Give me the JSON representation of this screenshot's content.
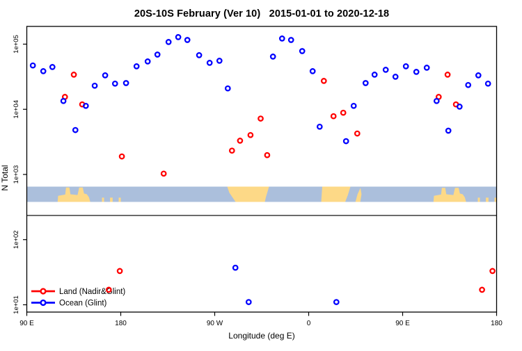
{
  "title": "20S-10S February (Ver 10)   2015-01-01 to 2020-12-18",
  "chart_data": {
    "type": "scatter",
    "title": "20S-10S February (Ver 10)   2015-01-01 to 2020-12-18",
    "xlabel": "Longitude (deg E)",
    "ylabel": "N Total",
    "x_axis": {
      "range": [
        90,
        540
      ],
      "tick_values": [
        90,
        180,
        270,
        360,
        450,
        540
      ],
      "tick_labels": [
        "90 E",
        "180",
        "90 W",
        "0",
        "90 E",
        "180"
      ]
    },
    "y_axis": {
      "scale": "log10",
      "range": [
        8,
        200000
      ],
      "tick_values": [
        10,
        100,
        1000,
        10000,
        100000
      ],
      "tick_labels": [
        "1e+01",
        "1e+02",
        "1e+03",
        "1e+04",
        "1e+05"
      ]
    },
    "legend": {
      "position": "bottom-left",
      "entries": [
        {
          "label": "Land (Nadir&Glint)",
          "color": "#ff0000"
        },
        {
          "label": "Ocean (Glint)",
          "color": "#0000ff"
        }
      ]
    },
    "series": [
      {
        "key": "land",
        "label": "Land (Nadir&Glint)",
        "color": "#ff0000",
        "marker": "open-circle",
        "points": [
          [
            126.5,
            15500
          ],
          [
            135.1,
            34000
          ],
          [
            143.1,
            11900
          ],
          [
            168.5,
            17
          ],
          [
            179.1,
            33
          ],
          [
            181.1,
            1890
          ],
          [
            221.1,
            1030
          ],
          [
            286.5,
            2320
          ],
          [
            294.3,
            3300
          ],
          [
            304.3,
            4030
          ],
          [
            314.0,
            7200
          ],
          [
            320.3,
            1980
          ],
          [
            374.5,
            27300
          ],
          [
            383.8,
            7830
          ],
          [
            393.1,
            8850
          ],
          [
            406.5,
            4250
          ],
          [
            484.5,
            15500
          ],
          [
            493.1,
            34000
          ],
          [
            501.1,
            11900
          ],
          [
            526.1,
            17
          ],
          [
            536.1,
            33
          ]
        ]
      },
      {
        "key": "ocean",
        "label": "Ocean (Glint)",
        "color": "#0000ff",
        "marker": "open-circle",
        "points": [
          [
            95.8,
            47000
          ],
          [
            105.8,
            38500
          ],
          [
            114.5,
            44600
          ],
          [
            125.1,
            13400
          ],
          [
            136.5,
            4800
          ],
          [
            146.5,
            11300
          ],
          [
            155.1,
            23000
          ],
          [
            165.1,
            33200
          ],
          [
            174.5,
            24800
          ],
          [
            185.1,
            25300
          ],
          [
            195.1,
            45700
          ],
          [
            205.8,
            54200
          ],
          [
            215.1,
            69200
          ],
          [
            225.8,
            108000
          ],
          [
            235.1,
            128000
          ],
          [
            243.8,
            116000
          ],
          [
            255.1,
            67600
          ],
          [
            265.1,
            51600
          ],
          [
            274.5,
            55600
          ],
          [
            282.5,
            20900
          ],
          [
            289.8,
            37
          ],
          [
            302.5,
            11
          ],
          [
            325.8,
            64400
          ],
          [
            334.5,
            122000
          ],
          [
            343.1,
            116000
          ],
          [
            353.8,
            78300
          ],
          [
            363.8,
            38500
          ],
          [
            370.5,
            5400
          ],
          [
            386.5,
            11
          ],
          [
            395.8,
            3240
          ],
          [
            403.1,
            11300
          ],
          [
            414.5,
            25300
          ],
          [
            423.1,
            34000
          ],
          [
            433.8,
            40400
          ],
          [
            443.1,
            31600
          ],
          [
            453.1,
            45700
          ],
          [
            463.1,
            37500
          ],
          [
            473.1,
            43500
          ],
          [
            482.5,
            13400
          ],
          [
            493.8,
            4700
          ],
          [
            504.5,
            11000
          ],
          [
            512.8,
            23600
          ],
          [
            522.5,
            33200
          ],
          [
            531.8,
            24800
          ]
        ]
      }
    ],
    "map_strip": {
      "description": "20S-10S latitude band world map",
      "ocean_color": "#abbfdc",
      "land_color": "#fdd987",
      "land_polygons": [
        {
          "name": "indonesia-australia",
          "pts": [
            [
              119.5,
              1
            ],
            [
              120,
              0.6
            ],
            [
              124,
              0.55
            ],
            [
              126.8,
              0.52
            ],
            [
              127.6,
              0.06
            ],
            [
              130.8,
              0.06
            ],
            [
              131.8,
              0.5
            ],
            [
              138.6,
              0.55
            ],
            [
              140.2,
              0.06
            ],
            [
              143.6,
              0.06
            ],
            [
              144.8,
              0.45
            ],
            [
              147.5,
              0.5
            ],
            [
              149.5,
              0.7
            ],
            [
              150.8,
              1
            ]
          ]
        },
        {
          "name": "south-america",
          "pts": [
            [
              282,
              0
            ],
            [
              322,
              0
            ],
            [
              319,
              0.7
            ],
            [
              318,
              1
            ],
            [
              290,
              1
            ],
            [
              284,
              0.4
            ]
          ]
        },
        {
          "name": "africa",
          "pts": [
            [
              373,
              0
            ],
            [
              400,
              0
            ],
            [
              397.5,
              0.55
            ],
            [
              395,
              1
            ],
            [
              372,
              1
            ]
          ]
        },
        {
          "name": "madagascar",
          "pts": [
            [
              409.6,
              0.08
            ],
            [
              410.6,
              0.5
            ],
            [
              409.4,
              1
            ],
            [
              404.8,
              1
            ],
            [
              406.8,
              0.5
            ]
          ]
        },
        {
          "name": "australia-wrap",
          "pts": [
            [
              479.5,
              1
            ],
            [
              480,
              0.6
            ],
            [
              484,
              0.55
            ],
            [
              486.8,
              0.52
            ],
            [
              487.6,
              0.08
            ],
            [
              490.8,
              0.08
            ],
            [
              491.8,
              0.5
            ],
            [
              498.6,
              0.55
            ],
            [
              500.2,
              0.08
            ],
            [
              503.6,
              0.08
            ],
            [
              504.8,
              0.45
            ],
            [
              507.5,
              0.5
            ],
            [
              509.5,
              0.7
            ],
            [
              510.8,
              1
            ]
          ]
        }
      ],
      "island_specks": [
        {
          "lon": 163,
          "w": 2
        },
        {
          "lon": 171,
          "w": 2.5
        },
        {
          "lon": 179,
          "w": 2
        },
        {
          "lon": 523,
          "w": 2
        },
        {
          "lon": 531,
          "w": 2.5
        },
        {
          "lon": 539,
          "w": 2
        }
      ]
    }
  }
}
